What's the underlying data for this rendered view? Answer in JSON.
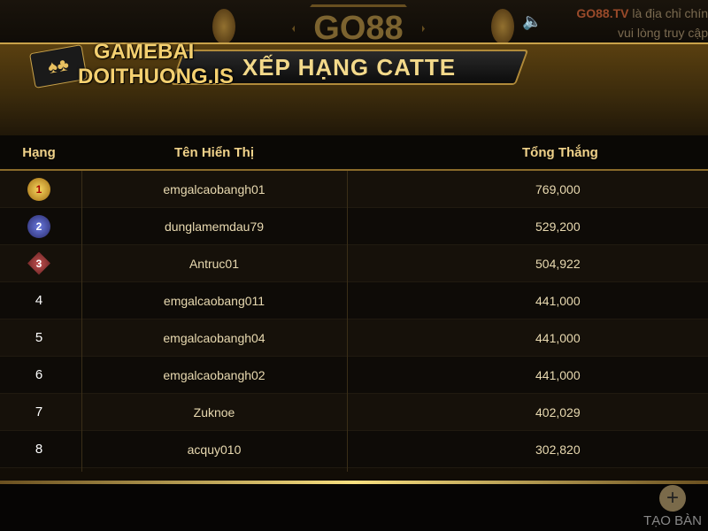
{
  "background": {
    "brand": "GO88",
    "notice_brand": "GO88.TV",
    "notice_line1": " là địa chỉ chín",
    "notice_line2": "vui lòng truy cập"
  },
  "logo": {
    "line1": "GAMEBAI",
    "line2": "DOITHUONG.IS"
  },
  "title": "XẾP HẠNG CATTE",
  "columns": [
    "Hạng",
    "Tên Hiển Thị",
    "Tổng Thắng"
  ],
  "rows": [
    {
      "rank": "1",
      "name": "emgalcaobangh01",
      "total": "769,000"
    },
    {
      "rank": "2",
      "name": "dunglamemdau79",
      "total": "529,200"
    },
    {
      "rank": "3",
      "name": "Antruc01",
      "total": "504,922"
    },
    {
      "rank": "4",
      "name": "emgalcaobang011",
      "total": "441,000"
    },
    {
      "rank": "5",
      "name": "emgalcaobangh04",
      "total": "441,000"
    },
    {
      "rank": "6",
      "name": "emgalcaobangh02",
      "total": "441,000"
    },
    {
      "rank": "7",
      "name": "Zuknoe",
      "total": "402,029"
    },
    {
      "rank": "8",
      "name": "acquy010",
      "total": "302,820"
    }
  ],
  "create_table": "TẠO BÀN",
  "colors": {
    "gold": "#c9a24a",
    "header_text": "#f0d28a"
  }
}
